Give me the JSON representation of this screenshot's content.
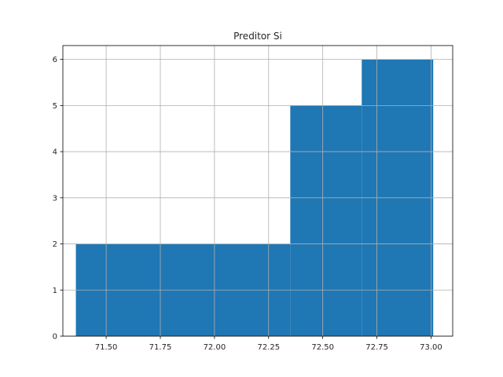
{
  "chart_data": {
    "type": "bar",
    "title": "Preditor Si",
    "xlabel": "",
    "ylabel": "",
    "xlim": [
      71.3,
      73.1
    ],
    "ylim": [
      0,
      6.3
    ],
    "x_ticks": [
      "71.50",
      "71.75",
      "72.00",
      "72.25",
      "72.50",
      "72.75",
      "73.00"
    ],
    "x_tick_values": [
      71.5,
      71.75,
      72.0,
      72.25,
      72.5,
      72.75,
      73.0
    ],
    "y_ticks": [
      "0",
      "1",
      "2",
      "3",
      "4",
      "5",
      "6"
    ],
    "y_tick_values": [
      0,
      1,
      2,
      3,
      4,
      5,
      6
    ],
    "grid": true,
    "bar_color": "#1f77b4",
    "bins": [
      {
        "start": 71.36,
        "end": 72.35,
        "count": 2
      },
      {
        "start": 72.35,
        "end": 72.68,
        "count": 5
      },
      {
        "start": 72.68,
        "end": 73.01,
        "count": 6
      }
    ]
  }
}
